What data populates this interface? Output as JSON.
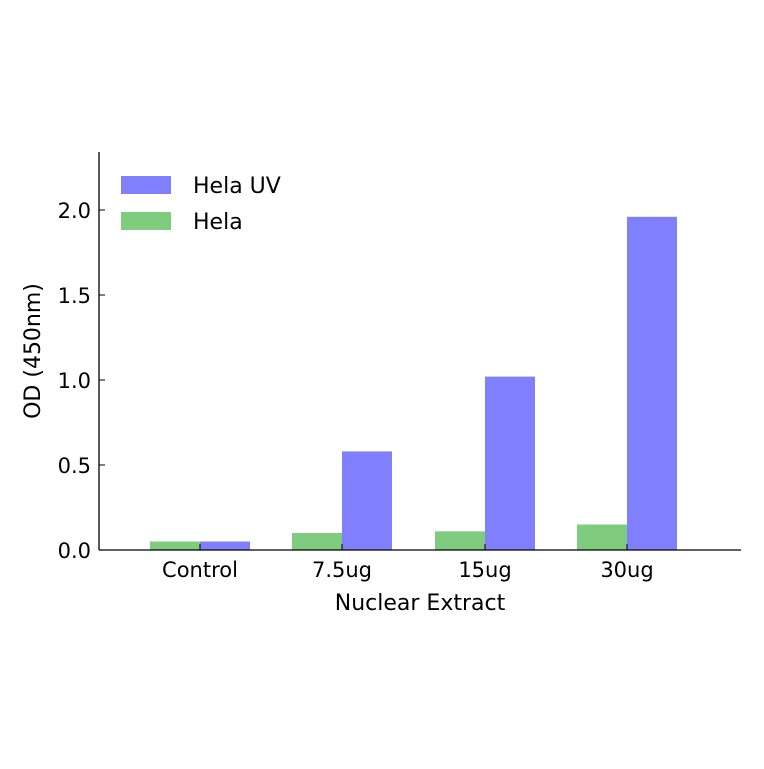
{
  "chart_data": {
    "type": "bar",
    "categories": [
      "Control",
      "7.5ug",
      "15ug",
      "30ug"
    ],
    "series": [
      {
        "name": "Hela",
        "color": "#7fcc7f",
        "values": [
          0.05,
          0.1,
          0.11,
          0.15
        ]
      },
      {
        "name": "Hela UV",
        "color": "#8080ff",
        "values": [
          0.05,
          0.58,
          1.02,
          1.96
        ]
      }
    ],
    "xlabel": "Nuclear Extract",
    "ylabel": "OD (450nm)",
    "ylim": [
      0,
      2.35
    ],
    "yticks": [
      "0.0",
      "0.5",
      "1.0",
      "1.5",
      "2.0"
    ],
    "legend_order": [
      "Hela UV",
      "Hela"
    ],
    "legend_position": "top-left",
    "grid": false
  }
}
